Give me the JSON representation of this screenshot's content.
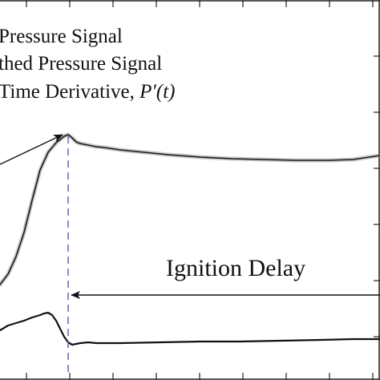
{
  "chart_data": {
    "type": "line",
    "title": "",
    "xlabel": "",
    "ylabel": "",
    "grid": false,
    "legend": {
      "placement": "top-left",
      "entries": [
        {
          "label": "Pressure Signal"
        },
        {
          "label": "thed Pressure Signal"
        },
        {
          "label": "Time Derivative, ",
          "var": "P′(t)"
        }
      ]
    },
    "annotations": {
      "ignition_delay_label": "Ignition Delay"
    },
    "series": [
      {
        "name": "Pressure Signal",
        "color": "#9a9a9a",
        "points": [
          [
            0,
            355
          ],
          [
            10,
            342
          ],
          [
            20,
            320
          ],
          [
            30,
            290
          ],
          [
            40,
            250
          ],
          [
            50,
            212
          ],
          [
            60,
            190
          ],
          [
            70,
            178
          ],
          [
            80,
            170
          ],
          [
            85,
            168
          ],
          [
            90,
            172
          ],
          [
            95,
            177
          ],
          [
            100,
            179
          ],
          [
            110,
            181
          ],
          [
            120,
            183
          ],
          [
            130,
            184
          ],
          [
            150,
            187
          ],
          [
            180,
            190
          ],
          [
            210,
            193
          ],
          [
            250,
            196
          ],
          [
            290,
            198
          ],
          [
            330,
            199
          ],
          [
            370,
            200
          ],
          [
            410,
            200
          ],
          [
            440,
            199
          ],
          [
            474,
            194
          ]
        ]
      },
      {
        "name": "thed Pressure Signal",
        "color": "#1a1a1a",
        "points": [
          [
            0,
            355
          ],
          [
            10,
            342
          ],
          [
            20,
            320
          ],
          [
            30,
            290
          ],
          [
            40,
            250
          ],
          [
            50,
            212
          ],
          [
            60,
            190
          ],
          [
            70,
            178
          ],
          [
            80,
            170
          ],
          [
            85,
            168
          ],
          [
            90,
            172
          ],
          [
            95,
            177
          ],
          [
            100,
            179
          ],
          [
            110,
            181
          ],
          [
            120,
            183
          ],
          [
            130,
            184
          ],
          [
            150,
            187
          ],
          [
            180,
            190
          ],
          [
            210,
            193
          ],
          [
            250,
            196
          ],
          [
            290,
            198
          ],
          [
            330,
            199
          ],
          [
            370,
            200
          ],
          [
            410,
            200
          ],
          [
            440,
            199
          ],
          [
            474,
            194
          ]
        ]
      },
      {
        "name": "Time Derivative, P′(t)",
        "color": "#111111",
        "points": [
          [
            0,
            412
          ],
          [
            10,
            406
          ],
          [
            20,
            403
          ],
          [
            30,
            400
          ],
          [
            40,
            396
          ],
          [
            50,
            393
          ],
          [
            55,
            391
          ],
          [
            60,
            390
          ],
          [
            65,
            393
          ],
          [
            70,
            400
          ],
          [
            75,
            410
          ],
          [
            80,
            420
          ],
          [
            85,
            427
          ],
          [
            90,
            430
          ],
          [
            95,
            429
          ],
          [
            100,
            428
          ],
          [
            110,
            427
          ],
          [
            120,
            428
          ],
          [
            150,
            428
          ],
          [
            200,
            427
          ],
          [
            250,
            426
          ],
          [
            300,
            426
          ],
          [
            350,
            425
          ],
          [
            400,
            424
          ],
          [
            440,
            423
          ],
          [
            474,
            423
          ]
        ]
      }
    ],
    "markers": {
      "ignition_x": 85,
      "delay_end_x": 474,
      "delay_arrow_y": 368
    }
  }
}
